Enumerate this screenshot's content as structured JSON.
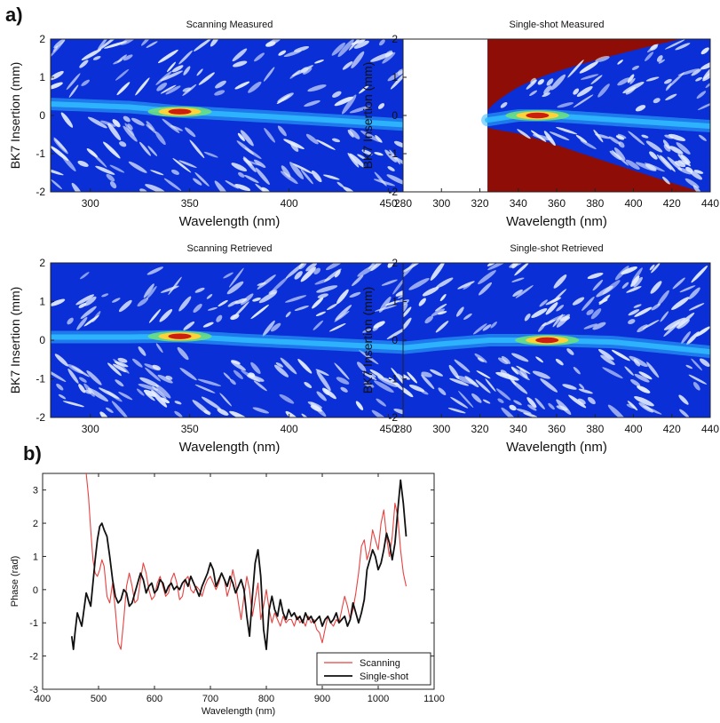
{
  "figure": {
    "panel_a_label": "a)",
    "panel_b_label": "b)"
  },
  "colors": {
    "map_background": "#0a2fd6",
    "map_low": "#0a3ae0",
    "map_mid": "#2fb8ff",
    "map_high": "#ffd23a",
    "map_peak": "#cc1f10",
    "speckle": "#e9f1ff",
    "masked_region": "#8e0d06",
    "scanning_line": "#e8413f",
    "singleshot_line": "#111111"
  },
  "chart_data": [
    {
      "type": "heatmap",
      "title": "Scanning Measured",
      "xlabel": "Wavelength (nm)",
      "ylabel": "BK7 Insertion (mm)",
      "xlim": [
        280,
        460
      ],
      "ylim": [
        -2,
        2
      ],
      "xticks": [
        300,
        350,
        400,
        450
      ],
      "yticks": [
        2,
        1,
        0,
        -1,
        -2
      ],
      "peak": {
        "x": 345,
        "y": 0.1
      },
      "ridge": [
        [
          280,
          0.3
        ],
        [
          320,
          0.22
        ],
        [
          345,
          0.1
        ],
        [
          380,
          0.0
        ],
        [
          420,
          -0.12
        ],
        [
          460,
          -0.25
        ]
      ],
      "masked_below_x": null
    },
    {
      "type": "heatmap",
      "title": "Single-shot Measured",
      "xlabel": "Wavelength (nm)",
      "ylabel": "BK7 Insertion (mm)",
      "xlim": [
        280,
        440
      ],
      "ylim": [
        -2,
        2
      ],
      "xticks": [
        280,
        300,
        320,
        340,
        360,
        380,
        400,
        420,
        440
      ],
      "yticks": [
        2,
        1,
        0,
        -1,
        -2
      ],
      "peak": {
        "x": 350,
        "y": 0.0
      },
      "ridge": [
        [
          324,
          -0.12
        ],
        [
          340,
          0.0
        ],
        [
          355,
          0.0
        ],
        [
          380,
          -0.08
        ],
        [
          410,
          -0.18
        ],
        [
          440,
          -0.28
        ]
      ],
      "masked_below_x": 324
    },
    {
      "type": "heatmap",
      "title": "Scanning Retrieved",
      "xlabel": "Wavelength (nm)",
      "ylabel": "BK7 Insertion (mm)",
      "xlim": [
        280,
        460
      ],
      "ylim": [
        -2,
        2
      ],
      "xticks": [
        300,
        350,
        400,
        450
      ],
      "yticks": [
        2,
        1,
        0,
        -1,
        -2
      ],
      "peak": {
        "x": 345,
        "y": 0.1
      },
      "ridge": [
        [
          280,
          0.08
        ],
        [
          320,
          0.08
        ],
        [
          345,
          0.1
        ],
        [
          380,
          0.0
        ],
        [
          420,
          -0.1
        ],
        [
          460,
          -0.2
        ]
      ],
      "masked_below_x": null
    },
    {
      "type": "heatmap",
      "title": "Single-shot Retrieved",
      "xlabel": "Wavelength (nm)",
      "ylabel": "BK7 Insertion (mm)",
      "xlim": [
        280,
        440
      ],
      "ylim": [
        -2,
        2
      ],
      "xticks": [
        280,
        300,
        320,
        340,
        360,
        380,
        400,
        420,
        440
      ],
      "yticks": [
        2,
        1,
        0,
        -1,
        -2
      ],
      "peak": {
        "x": 355,
        "y": 0.0
      },
      "ridge": [
        [
          280,
          -0.2
        ],
        [
          300,
          -0.1
        ],
        [
          325,
          0.0
        ],
        [
          355,
          0.0
        ],
        [
          390,
          -0.05
        ],
        [
          420,
          -0.2
        ],
        [
          440,
          -0.3
        ]
      ],
      "masked_below_x": null
    },
    {
      "type": "line",
      "title": "",
      "xlabel": "Wavelength (nm)",
      "ylabel": "Phase (rad)",
      "xlim": [
        400,
        1100
      ],
      "ylim": [
        -3,
        3.5
      ],
      "xticks": [
        400,
        500,
        600,
        700,
        800,
        900,
        1000,
        1100
      ],
      "yticks": [
        3,
        2,
        1,
        0,
        -1,
        -2,
        -3
      ],
      "legend_position": "bottom-right",
      "series": [
        {
          "name": "Scanning",
          "color": "#e8413f",
          "x": [
            478,
            482,
            486,
            490,
            494,
            498,
            502,
            506,
            510,
            515,
            520,
            525,
            530,
            535,
            540,
            545,
            550,
            555,
            560,
            565,
            570,
            575,
            580,
            585,
            590,
            595,
            600,
            605,
            610,
            615,
            620,
            625,
            630,
            635,
            640,
            645,
            650,
            655,
            660,
            665,
            670,
            675,
            680,
            685,
            690,
            695,
            700,
            705,
            710,
            715,
            720,
            725,
            730,
            735,
            740,
            745,
            750,
            755,
            760,
            765,
            770,
            775,
            780,
            785,
            790,
            795,
            800,
            805,
            810,
            815,
            820,
            825,
            830,
            835,
            840,
            845,
            850,
            855,
            860,
            865,
            870,
            875,
            880,
            885,
            890,
            895,
            900,
            905,
            910,
            915,
            920,
            925,
            930,
            935,
            940,
            945,
            950,
            955,
            960,
            965,
            970,
            975,
            980,
            985,
            990,
            995,
            1000,
            1005,
            1010,
            1015,
            1020,
            1025,
            1030,
            1035,
            1040,
            1045,
            1050
          ],
          "y": [
            3.5,
            2.8,
            1.8,
            0.9,
            0.5,
            0.4,
            0.6,
            0.9,
            0.7,
            -0.2,
            -0.4,
            0.2,
            -0.6,
            -1.6,
            -1.8,
            -0.9,
            0.1,
            0.5,
            0.1,
            -0.4,
            -0.3,
            0.3,
            0.8,
            0.5,
            0.0,
            -0.3,
            -0.2,
            0.2,
            0.4,
            0.1,
            -0.2,
            -0.1,
            0.3,
            0.5,
            0.2,
            -0.3,
            -0.2,
            0.3,
            0.4,
            0.0,
            -0.1,
            0.1,
            0.0,
            -0.2,
            0.1,
            0.3,
            0.4,
            0.2,
            0.0,
            0.2,
            0.5,
            0.3,
            -0.2,
            0.1,
            0.6,
            0.2,
            -0.4,
            -0.9,
            -0.2,
            0.4,
            0.0,
            -0.8,
            -0.3,
            0.2,
            -0.9,
            -0.5,
            0.0,
            -0.6,
            -1.0,
            -0.7,
            -0.9,
            -1.1,
            -0.8,
            -1.0,
            -0.9,
            -0.9,
            -1.1,
            -0.8,
            -1.0,
            -0.9,
            -1.1,
            -0.8,
            -1.0,
            -0.9,
            -1.2,
            -1.3,
            -1.6,
            -1.2,
            -0.8,
            -1.0,
            -1.1,
            -0.9,
            -1.0,
            -0.6,
            -0.2,
            -0.5,
            -0.9,
            -0.6,
            -0.1,
            0.5,
            1.3,
            1.5,
            0.9,
            1.2,
            1.8,
            1.5,
            1.2,
            2.0,
            2.4,
            1.6,
            1.0,
            1.6,
            2.6,
            2.2,
            1.2,
            0.5,
            0.1
          ]
        },
        {
          "name": "Single-shot",
          "color": "#111111",
          "x": [
            452,
            455,
            458,
            462,
            466,
            470,
            474,
            478,
            482,
            486,
            490,
            494,
            498,
            502,
            506,
            510,
            515,
            520,
            525,
            530,
            535,
            540,
            545,
            550,
            555,
            560,
            565,
            570,
            575,
            580,
            585,
            590,
            595,
            600,
            605,
            610,
            615,
            620,
            625,
            630,
            635,
            640,
            645,
            650,
            655,
            660,
            665,
            670,
            675,
            680,
            685,
            690,
            695,
            700,
            705,
            710,
            715,
            720,
            725,
            730,
            735,
            740,
            745,
            750,
            755,
            760,
            765,
            770,
            775,
            780,
            785,
            790,
            795,
            800,
            805,
            810,
            815,
            820,
            825,
            830,
            835,
            840,
            845,
            850,
            855,
            860,
            865,
            870,
            875,
            880,
            885,
            890,
            895,
            900,
            905,
            910,
            915,
            920,
            925,
            930,
            935,
            940,
            945,
            950,
            955,
            960,
            965,
            970,
            975,
            980,
            985,
            990,
            995,
            1000,
            1005,
            1010,
            1015,
            1020,
            1025,
            1030,
            1035,
            1040,
            1045,
            1050
          ],
          "y": [
            -1.4,
            -1.8,
            -1.3,
            -0.7,
            -0.9,
            -1.1,
            -0.6,
            -0.1,
            -0.3,
            -0.5,
            0.2,
            0.9,
            1.5,
            1.9,
            2.0,
            1.8,
            1.6,
            1.0,
            0.3,
            -0.2,
            -0.4,
            -0.3,
            0.0,
            -0.1,
            -0.5,
            -0.4,
            -0.1,
            0.2,
            0.5,
            0.3,
            -0.1,
            0.1,
            0.2,
            -0.1,
            0.0,
            0.3,
            0.2,
            -0.1,
            0.1,
            0.2,
            0.0,
            0.1,
            0.0,
            0.2,
            0.3,
            0.1,
            0.4,
            0.2,
            0.0,
            -0.2,
            0.1,
            0.3,
            0.5,
            0.8,
            0.6,
            0.1,
            0.3,
            0.5,
            0.3,
            0.1,
            0.4,
            0.2,
            -0.1,
            0.1,
            0.3,
            0.0,
            -0.8,
            -1.4,
            -0.2,
            0.8,
            1.2,
            0.4,
            -1.2,
            -1.8,
            -0.6,
            -0.2,
            -0.6,
            -0.8,
            -0.3,
            -0.7,
            -0.9,
            -0.6,
            -0.8,
            -0.7,
            -0.9,
            -0.8,
            -1.0,
            -0.7,
            -0.9,
            -0.8,
            -1.0,
            -0.9,
            -0.8,
            -1.1,
            -0.9,
            -0.8,
            -1.0,
            -0.9,
            -0.7,
            -1.0,
            -0.9,
            -0.8,
            -1.1,
            -0.9,
            -0.4,
            -0.7,
            -1.0,
            -0.7,
            -0.3,
            0.6,
            0.9,
            1.2,
            1.0,
            0.6,
            0.8,
            1.2,
            1.7,
            1.4,
            0.9,
            1.4,
            2.4,
            3.3,
            2.6,
            1.6
          ]
        }
      ]
    }
  ]
}
